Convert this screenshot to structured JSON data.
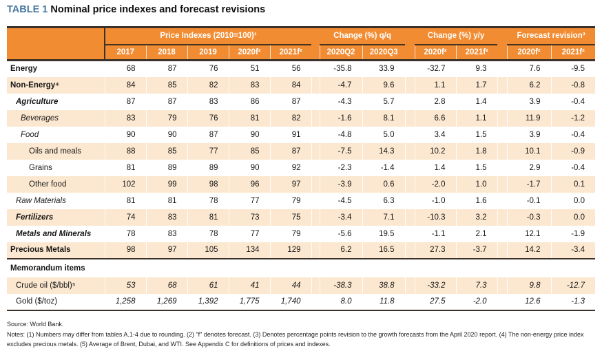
{
  "title": {
    "label": "TABLE 1",
    "text": "Nominal price indexes and forecast revisions"
  },
  "colors": {
    "accent_orange": "#F28C33",
    "row_peach": "#FCE8D0",
    "label_tint_pink": "#F9E3DA",
    "rule_dark": "#3B3129",
    "title_blue": "#4678A3"
  },
  "table": {
    "groups": [
      {
        "title": "Price Indexes (2010=100)¹",
        "cols": [
          "2017",
          "2018",
          "2019",
          "2020f²",
          "2021f²"
        ]
      },
      {
        "title": "Change (%) q/q",
        "cols": [
          "2020Q2",
          "2020Q3"
        ]
      },
      {
        "title": "Change (%) y/y",
        "cols": [
          "2020f²",
          "2021f²"
        ]
      },
      {
        "title": "Forecast revision³",
        "cols": [
          "2020f²",
          "2021f²"
        ]
      }
    ],
    "rows": [
      {
        "label": "Energy",
        "style": "b",
        "indent": 0,
        "label_tint": false,
        "values_italic": false,
        "values": [
          "68",
          "87",
          "76",
          "51",
          "56",
          "-35.8",
          "33.9",
          "-32.7",
          "9.3",
          "7.6",
          "-9.5"
        ]
      },
      {
        "label": "Non-Energy⁴",
        "style": "b",
        "indent": 0,
        "label_tint": true,
        "values_italic": false,
        "values": [
          "84",
          "85",
          "82",
          "83",
          "84",
          "-4.7",
          "9.6",
          "1.1",
          "1.7",
          "6.2",
          "-0.8"
        ]
      },
      {
        "label": "Agriculture",
        "style": "bi",
        "indent": 1,
        "label_tint": false,
        "values_italic": false,
        "values": [
          "87",
          "87",
          "83",
          "86",
          "87",
          "-4.3",
          "5.7",
          "2.8",
          "1.4",
          "3.9",
          "-0.4"
        ]
      },
      {
        "label": "Beverages",
        "style": "i",
        "indent": 2,
        "label_tint": false,
        "values_italic": false,
        "values": [
          "83",
          "79",
          "76",
          "81",
          "82",
          "-1.6",
          "8.1",
          "6.6",
          "1.1",
          "11.9",
          "-1.2"
        ]
      },
      {
        "label": "Food",
        "style": "i",
        "indent": 2,
        "label_tint": false,
        "values_italic": false,
        "values": [
          "90",
          "90",
          "87",
          "90",
          "91",
          "-4.8",
          "5.0",
          "3.4",
          "1.5",
          "3.9",
          "-0.4"
        ]
      },
      {
        "label": "Oils and meals",
        "style": "",
        "indent": 3,
        "label_tint": false,
        "values_italic": false,
        "values": [
          "88",
          "85",
          "77",
          "85",
          "87",
          "-7.5",
          "14.3",
          "10.2",
          "1.8",
          "10.1",
          "-0.9"
        ]
      },
      {
        "label": "Grains",
        "style": "",
        "indent": 3,
        "label_tint": false,
        "values_italic": false,
        "values": [
          "81",
          "89",
          "89",
          "90",
          "92",
          "-2.3",
          "-1.4",
          "1.4",
          "1.5",
          "2.9",
          "-0.4"
        ]
      },
      {
        "label": "Other food",
        "style": "",
        "indent": 3,
        "label_tint": false,
        "values_italic": false,
        "values": [
          "102",
          "99",
          "98",
          "96",
          "97",
          "-3.9",
          "0.6",
          "-2.0",
          "1.0",
          "-1.7",
          "0.1"
        ]
      },
      {
        "label": "Raw Materials",
        "style": "i",
        "indent": 1,
        "label_tint": false,
        "values_italic": false,
        "values": [
          "81",
          "81",
          "78",
          "77",
          "79",
          "-4.5",
          "6.3",
          "-1.0",
          "1.6",
          "-0.1",
          "0.0"
        ]
      },
      {
        "label": "Fertilizers",
        "style": "bi",
        "indent": 1,
        "label_tint": false,
        "values_italic": false,
        "values": [
          "74",
          "83",
          "81",
          "73",
          "75",
          "-3.4",
          "7.1",
          "-10.3",
          "3.2",
          "-0.3",
          "0.0"
        ]
      },
      {
        "label": "Metals and Minerals",
        "style": "bi",
        "indent": 1,
        "label_tint": false,
        "values_italic": false,
        "values": [
          "78",
          "83",
          "78",
          "77",
          "79",
          "-5.6",
          "19.5",
          "-1.1",
          "2.1",
          "12.1",
          "-1.9"
        ]
      },
      {
        "label": "Precious Metals",
        "style": "b",
        "indent": 0,
        "label_tint": false,
        "values_italic": false,
        "values": [
          "98",
          "97",
          "105",
          "134",
          "129",
          "6.2",
          "16.5",
          "27.3",
          "-3.7",
          "14.2",
          "-3.4"
        ]
      }
    ],
    "memo_header": "Memorandum items",
    "memo_rows": [
      {
        "label": "Crude oil ($/bbl)⁵",
        "style": "",
        "indent": 1,
        "label_tint": false,
        "values_italic": true,
        "values": [
          "53",
          "68",
          "61",
          "41",
          "44",
          "-38.3",
          "38.8",
          "-33.2",
          "7.3",
          "9.8",
          "-12.7"
        ]
      },
      {
        "label": "Gold ($/toz)",
        "style": "",
        "indent": 1,
        "label_tint": false,
        "values_italic": true,
        "values": [
          "1,258",
          "1,269",
          "1,392",
          "1,775",
          "1,740",
          "8.0",
          "11.8",
          "27.5",
          "-2.0",
          "12.6",
          "-1.3"
        ]
      }
    ]
  },
  "footer": {
    "source": "Source: World Bank.",
    "notes": "Notes: (1) Numbers may differ from tables A.1-4 due to rounding. (2) \"f\" denotes forecast. (3) Denotes percentage points revision to the growth forecasts from the April 2020 report. (4) The non-energy price index excludes precious metals. (5) Average of Brent, Dubai, and WTI. See Appendix C for definitions of prices and indexes."
  }
}
